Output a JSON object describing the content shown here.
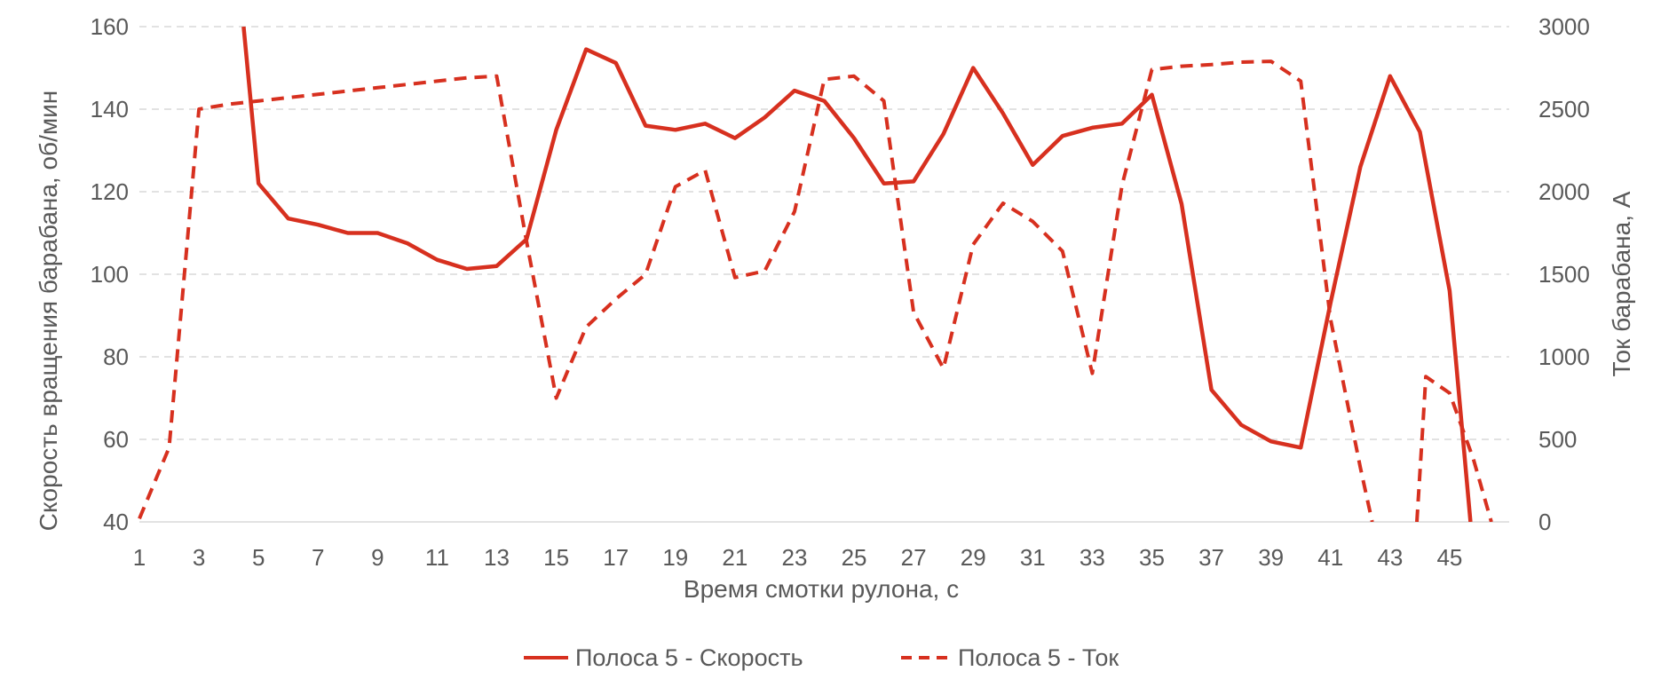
{
  "chart_data": {
    "type": "line",
    "x": [
      1,
      2,
      3,
      4,
      5,
      6,
      7,
      8,
      9,
      10,
      11,
      12,
      13,
      14,
      15,
      16,
      17,
      18,
      19,
      20,
      21,
      22,
      23,
      24,
      25,
      26,
      27,
      28,
      29,
      30,
      31,
      32,
      33,
      34,
      35,
      36,
      37,
      38,
      39,
      40,
      41,
      42,
      43,
      44,
      45,
      46
    ],
    "x_tick_labels": [
      "1",
      "3",
      "5",
      "7",
      "9",
      "11",
      "13",
      "15",
      "17",
      "19",
      "21",
      "23",
      "25",
      "27",
      "29",
      "31",
      "33",
      "35",
      "37",
      "39",
      "41",
      "43",
      "45"
    ],
    "xlabel": "Время смотки рулона, с",
    "ylabel_left": "Скорость вращения барабана, об/мин",
    "ylabel_right": "Ток барабана, А",
    "ylim_left": [
      40,
      160
    ],
    "ylim_right": [
      0,
      3000
    ],
    "y_ticks_left": [
      "40",
      "60",
      "80",
      "100",
      "120",
      "140",
      "160"
    ],
    "y_ticks_right": [
      "0",
      "500",
      "1000",
      "1500",
      "2000",
      "2500",
      "3000"
    ],
    "grid": "horizontal dashed",
    "legend_position": "bottom",
    "series": [
      {
        "name": "Полоса 5 - Скорость",
        "axis": "left",
        "style": "solid",
        "color": "#d7301f",
        "x": [
          4.5,
          5,
          6,
          7,
          8,
          9,
          10,
          11,
          12,
          13,
          14,
          15,
          16,
          17,
          18,
          19,
          20,
          21,
          22,
          23,
          24,
          25,
          26,
          27,
          28,
          29,
          30,
          31,
          32,
          33,
          34,
          35,
          36,
          37,
          38,
          39,
          40,
          41,
          42,
          43,
          44,
          45,
          45.7
        ],
        "values": [
          160,
          122,
          113.5,
          112,
          110,
          110,
          107.5,
          103.5,
          101.3,
          102,
          108.5,
          135,
          154.5,
          151.2,
          136,
          135,
          136.5,
          133,
          138,
          144.5,
          142,
          133,
          122,
          122.5,
          134,
          150,
          139,
          126.5,
          133.5,
          135.5,
          136.5,
          143.5,
          117,
          72,
          63.5,
          59.5,
          58,
          93,
          126,
          148,
          134.5,
          96,
          40
        ]
      },
      {
        "name": "Полоса 5 - Ток",
        "axis": "right",
        "style": "dashed",
        "color": "#d7301f",
        "segments": [
          {
            "x": [
              1,
              2,
              3,
              4,
              5,
              6,
              7,
              8,
              9,
              10,
              11,
              12,
              13,
              14,
              15,
              16,
              17,
              18,
              19,
              20,
              21,
              22,
              23,
              24,
              25,
              26,
              27,
              28,
              29,
              30,
              31,
              32,
              33,
              34,
              35,
              36,
              37,
              38,
              39,
              40,
              41,
              42,
              42.4
            ],
            "values": [
              20,
              450,
              2500,
              2530,
              2550,
              2570,
              2590,
              2610,
              2630,
              2650,
              2670,
              2690,
              2700,
              1700,
              750,
              1180,
              1350,
              1500,
              2030,
              2130,
              1480,
              1520,
              1880,
              2680,
              2700,
              2550,
              1270,
              930,
              1680,
              1930,
              1820,
              1640,
              900,
              2040,
              2740,
              2760,
              2770,
              2785,
              2790,
              2670,
              1230,
              330,
              0
            ]
          },
          {
            "x": [
              43.9,
              44.1,
              44.2,
              45,
              45.8,
              46.4
            ],
            "values": [
              0,
              580,
              880,
              780,
              380,
              0
            ]
          }
        ]
      }
    ]
  }
}
